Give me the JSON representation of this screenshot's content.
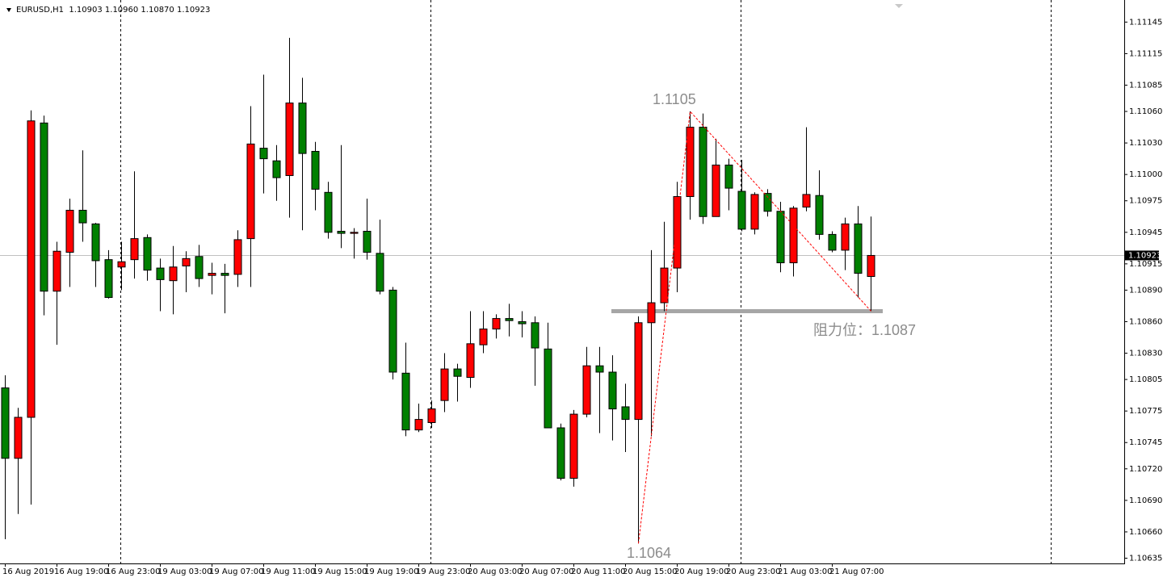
{
  "chart_data": {
    "type": "candlestick",
    "header": "EURUSD,H1  1.10903 1.10960 1.10870 1.10923",
    "categories": [
      "16 Aug 2019",
      null,
      null,
      null,
      "16 Aug 19:00",
      null,
      null,
      null,
      "16 Aug 23:00",
      null,
      null,
      null,
      "19 Aug 03:00",
      null,
      null,
      null,
      "19 Aug 07:00",
      null,
      null,
      null,
      "19 Aug 11:00",
      null,
      null,
      null,
      "19 Aug 15:00",
      null,
      null,
      null,
      "19 Aug 19:00",
      null,
      null,
      null,
      "19 Aug 23:00",
      null,
      null,
      null,
      "20 Aug 03:00",
      null,
      null,
      null,
      "20 Aug 07:00",
      null,
      null,
      null,
      "20 Aug 11:00",
      null,
      null,
      null,
      "20 Aug 15:00",
      null,
      null,
      null,
      "20 Aug 19:00",
      null,
      null,
      null,
      "20 Aug 23:00",
      null,
      null,
      null,
      "21 Aug 03:00",
      null,
      null,
      null,
      "21 Aug 07:00",
      null,
      null,
      null
    ],
    "open": [
      1.10797,
      1.1073,
      1.10769,
      1.11049,
      1.10889,
      1.10926,
      1.10966,
      1.10953,
      1.10919,
      1.10912,
      1.10919,
      1.1094,
      1.10911,
      1.10899,
      1.10913,
      1.10922,
      1.10904,
      1.10906,
      1.10905,
      1.10939,
      1.11025,
      1.11013,
      1.10999,
      1.11068,
      1.11022,
      1.10983,
      1.10946,
      1.10944,
      1.10946,
      1.10925,
      1.1089,
      1.10811,
      1.10757,
      1.10764,
      1.10785,
      1.10815,
      1.10807,
      1.10838,
      1.10853,
      1.10863,
      1.1086,
      1.10859,
      1.10834,
      1.10759,
      1.10711,
      1.10772,
      1.10818,
      1.10812,
      1.10779,
      1.10767,
      1.10859,
      1.10878,
      1.10911,
      1.10979,
      1.11045,
      1.1096,
      1.11009,
      1.10984,
      1.10948,
      1.10982,
      1.10965,
      1.10916,
      1.10969,
      1.1098,
      1.10943,
      1.10928,
      1.10953,
      1.10903
    ],
    "high": [
      1.10809,
      1.10778,
      1.11061,
      1.11056,
      1.10936,
      1.10977,
      1.11023,
      1.10954,
      1.10928,
      1.10936,
      1.11003,
      1.10943,
      1.1092,
      1.10932,
      1.10927,
      1.10933,
      1.10916,
      1.10915,
      1.10947,
      1.11065,
      1.11095,
      1.11028,
      1.1113,
      1.11092,
      1.11031,
      1.10993,
      1.11028,
      1.10949,
      1.10977,
      1.10957,
      1.10893,
      1.1084,
      1.10782,
      1.10785,
      1.1083,
      1.1082,
      1.1087,
      1.1087,
      1.10867,
      1.10877,
      1.1087,
      1.10865,
      1.10859,
      1.10763,
      1.10776,
      1.10836,
      1.10836,
      1.10828,
      1.10801,
      1.10865,
      1.10928,
      1.10955,
      1.10993,
      1.1106,
      1.11058,
      1.11034,
      1.11015,
      1.11014,
      1.10983,
      1.10986,
      1.10974,
      1.1097,
      1.11045,
      1.11004,
      1.10946,
      1.10959,
      1.1097,
      1.1096
    ],
    "low": [
      1.10653,
      1.10677,
      1.10686,
      1.10866,
      1.10838,
      1.10893,
      1.10936,
      1.10893,
      1.10882,
      1.1089,
      1.10901,
      1.10899,
      1.1087,
      1.10867,
      1.10888,
      1.10893,
      1.10886,
      1.10868,
      1.10893,
      1.10893,
      1.10982,
      1.10975,
      1.10959,
      1.10947,
      1.10966,
      1.10939,
      1.1093,
      1.1092,
      1.10919,
      1.10886,
      1.10805,
      1.10751,
      1.10755,
      1.10759,
      1.10774,
      1.10784,
      1.10797,
      1.1083,
      1.10844,
      1.10846,
      1.10845,
      1.10799,
      1.10759,
      1.10709,
      1.10703,
      1.10769,
      1.10754,
      1.10747,
      1.10736,
      1.10649,
      1.10751,
      1.1087,
      1.10888,
      1.10957,
      1.10953,
      1.1096,
      1.10966,
      1.10946,
      1.10943,
      1.1096,
      1.10907,
      1.10903,
      1.10965,
      1.10938,
      1.10926,
      1.10909,
      1.10883,
      1.1087
    ],
    "close": [
      1.1073,
      1.10769,
      1.11051,
      1.10889,
      1.10927,
      1.10966,
      1.10954,
      1.10918,
      1.10883,
      1.10917,
      1.10939,
      1.10909,
      1.109,
      1.10912,
      1.1092,
      1.10901,
      1.10906,
      1.10904,
      1.10938,
      1.11029,
      1.11015,
      1.10997,
      1.11068,
      1.1102,
      1.10986,
      1.10945,
      1.10944,
      1.10945,
      1.10926,
      1.10889,
      1.10812,
      1.10757,
      1.10767,
      1.10777,
      1.10815,
      1.10808,
      1.10839,
      1.10853,
      1.10863,
      1.10861,
      1.10858,
      1.10835,
      1.10759,
      1.10711,
      1.10772,
      1.10818,
      1.10812,
      1.10777,
      1.10767,
      1.10859,
      1.10878,
      1.10911,
      1.10979,
      1.11045,
      1.1096,
      1.11009,
      1.10987,
      1.10948,
      1.10981,
      1.10965,
      1.10916,
      1.10968,
      1.10981,
      1.10943,
      1.10928,
      1.10953,
      1.10906,
      1.10923
    ],
    "up_color": "#ff0000",
    "down_color": "#008000",
    "ylim": [
      1.1063,
      1.11166
    ],
    "yticks": [
      1.11145,
      1.11115,
      1.11085,
      {
        "value": 1.1106,
        "label": "1.11060"
      },
      {
        "value": 1.1103,
        "label": "1.11030"
      },
      {
        "value": 1.11,
        "label": "1.11000"
      },
      1.10975,
      1.10945,
      1.10915,
      {
        "value": 1.1089,
        "label": "1.10890"
      },
      {
        "value": 1.1086,
        "label": "1.10860"
      },
      {
        "value": 1.1083,
        "label": "1.10830"
      },
      1.10805,
      1.10775,
      1.10745,
      {
        "value": 1.1072,
        "label": "1.10720"
      },
      {
        "value": 1.1069,
        "label": "1.10690"
      },
      {
        "value": 1.1066,
        "label": "1.10660"
      },
      1.10635
    ],
    "last_price": 1.10923,
    "annotations": {
      "high_label": 1.1105,
      "low_label": 1.1064,
      "resistance": {
        "label": "阻力位：1.1087",
        "value": 1.1087
      }
    }
  }
}
